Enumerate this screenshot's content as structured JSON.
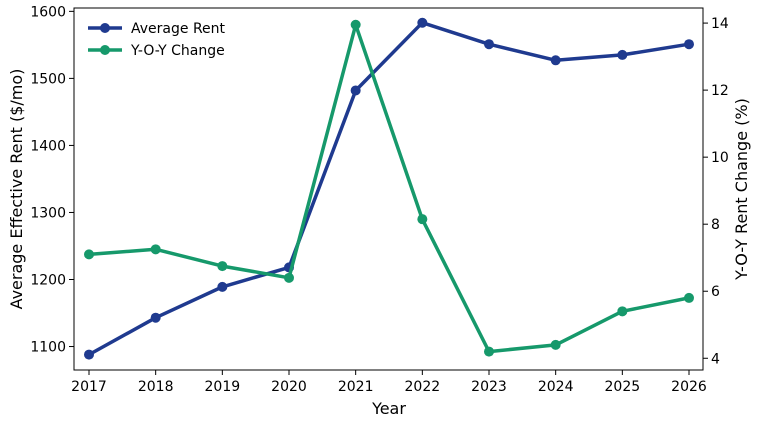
{
  "chart_data": {
    "type": "line",
    "categories": [
      "2017",
      "2018",
      "2019",
      "2020",
      "2021",
      "2022",
      "2023",
      "2024",
      "2025",
      "2026"
    ],
    "xlabel": "Year",
    "ylabel_left": "Average Effective Rent ($/mo)",
    "ylabel_right": "Y-O-Y Rent Change (%)",
    "ylim_left": [
      1065,
      1605
    ],
    "ylim_right": [
      3.65,
      14.45
    ],
    "yticks_left": [
      1100,
      1200,
      1300,
      1400,
      1500,
      1600
    ],
    "yticks_right": [
      4,
      6,
      8,
      10,
      12,
      14
    ],
    "grid": false,
    "legend_position": "top-left",
    "series": [
      {
        "name": "Average Rent",
        "axis": "left",
        "color": "#1f3a8f",
        "values": [
          1088,
          1143,
          1189,
          1218,
          1482,
          1583,
          1551,
          1527,
          1535,
          1551
        ]
      },
      {
        "name": "Y-O-Y Change",
        "axis": "right",
        "color": "#16996b",
        "values": [
          7.1,
          7.25,
          6.75,
          6.4,
          13.95,
          8.15,
          4.2,
          4.4,
          5.4,
          5.8
        ]
      }
    ]
  }
}
